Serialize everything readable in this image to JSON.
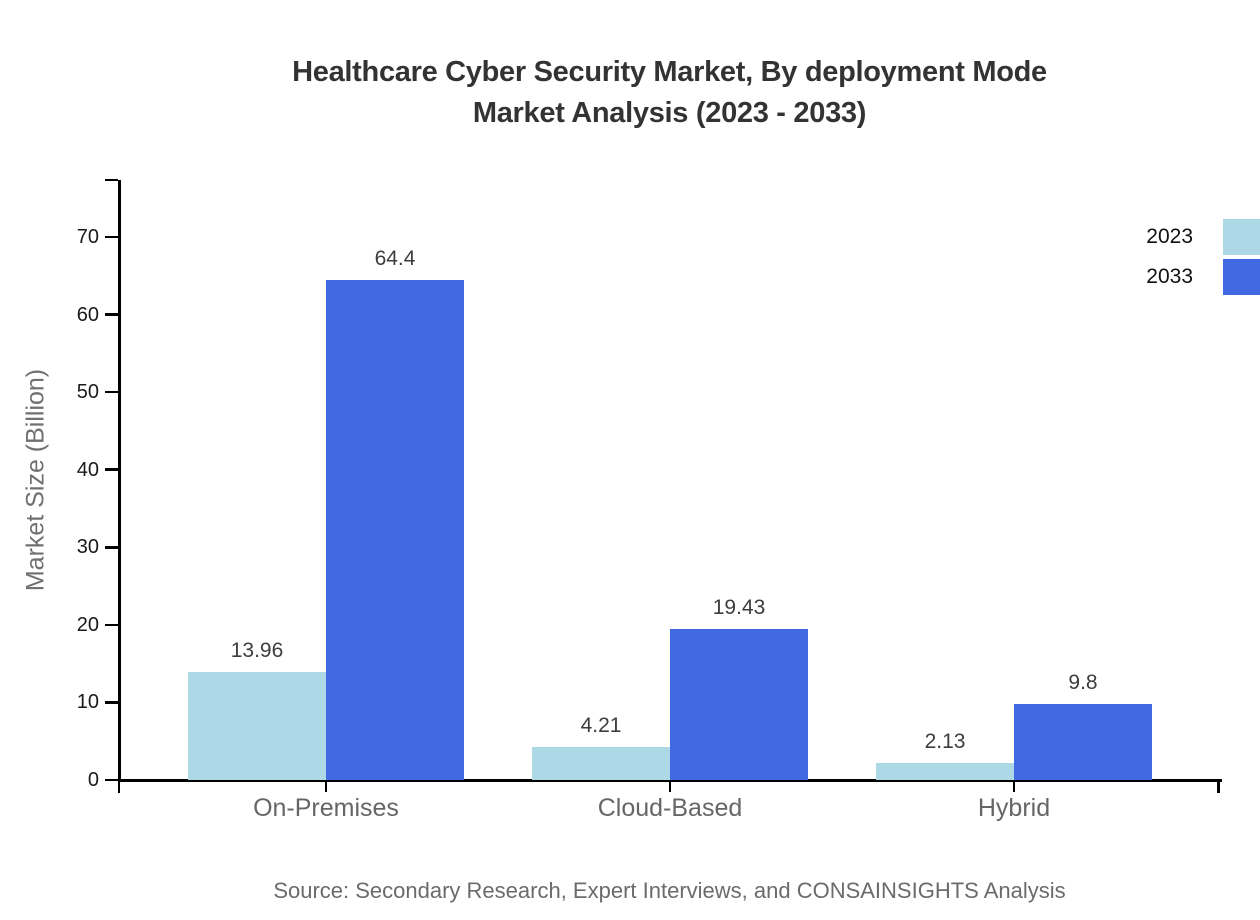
{
  "figure": {
    "title_line1": "Healthcare Cyber Security Market, By deployment Mode",
    "title_line2": "Market Analysis (2023 - 2033)",
    "source": "Source: Secondary Research, Expert Interviews, and CONSAINSIGHTS Analysis"
  },
  "chart_data": {
    "type": "bar",
    "title": "Healthcare Cyber Security Market, By deployment Mode Market Analysis (2023 - 2033)",
    "categories": [
      "On-Premises",
      "Cloud-Based",
      "Hybrid"
    ],
    "series": [
      {
        "name": "2023",
        "color": "#ADD8E6",
        "values": [
          13.96,
          4.21,
          2.13
        ]
      },
      {
        "name": "2033",
        "color": "#4169E1",
        "values": [
          64.4,
          19.43,
          9.8
        ]
      }
    ],
    "xlabel": "",
    "ylabel": "Market Size (Billion)",
    "ylim": [
      0,
      77.4
    ],
    "yticks": [
      0,
      10,
      20,
      30,
      40,
      50,
      60,
      70
    ],
    "grid": false,
    "legend_position": "top-right",
    "axis_color": "#000000",
    "tick_label_color": "#1a1a1a",
    "category_label_color": "#666666",
    "value_label_color": "#3d3d3d",
    "source": "Source: Secondary Research, Expert Interviews, and CONSAINSIGHTS Analysis"
  }
}
